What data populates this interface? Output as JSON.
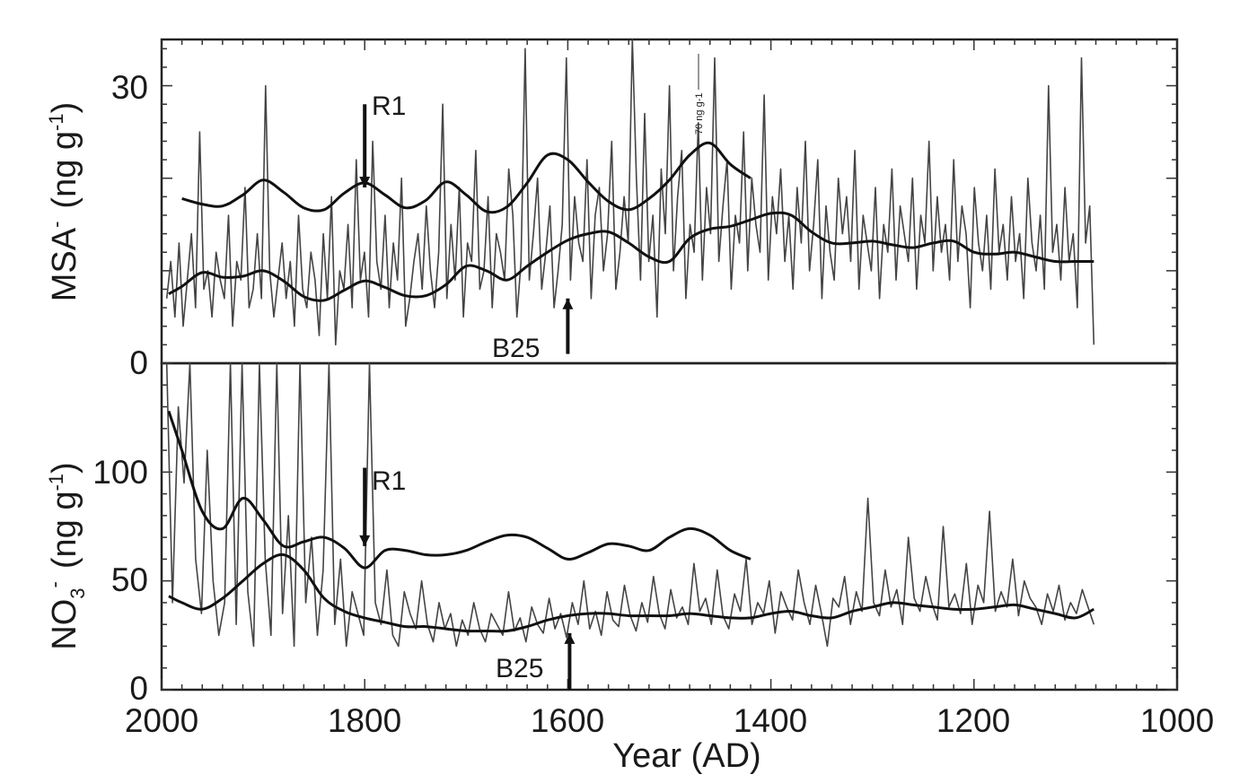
{
  "chart_data": [
    {
      "type": "line",
      "panel": "top",
      "ylabel": "MSA",
      "ylabel_sup": "-",
      "ylabel_unit": "(ng g",
      "ylabel_unit_sup": "-1",
      "ylabel_close": ")",
      "xlim": [
        2000,
        1000
      ],
      "ylim": [
        0,
        35
      ],
      "yticks": [
        0,
        30
      ],
      "ytick_labels": [
        "0",
        "30"
      ],
      "x_reversed": true,
      "grid": false,
      "annotations": [
        {
          "label": "R1",
          "x": 1800,
          "arrow": "down",
          "from_y": 28,
          "to_y": 19
        },
        {
          "label": "B25",
          "x": 1600,
          "arrow": "up",
          "from_y": 1,
          "to_y": 7
        },
        {
          "label": "70 ng g-1",
          "x": 1480,
          "y": 33,
          "note": "off-scale spike"
        }
      ],
      "series": [
        {
          "role": "raw",
          "x_range": [
            1995,
            1082
          ],
          "values": [
            7,
            11,
            5,
            13,
            4,
            9,
            14,
            6,
            25,
            8,
            10,
            5,
            12,
            9,
            7,
            16,
            4,
            11,
            9,
            19,
            6,
            8,
            14,
            7,
            30,
            10,
            5,
            9,
            13,
            7,
            11,
            4,
            16,
            8,
            6,
            12,
            9,
            3,
            14,
            7,
            18,
            2,
            10,
            8,
            15,
            6,
            22,
            9,
            12,
            5,
            24,
            11,
            8,
            16,
            6,
            13,
            9,
            20,
            4,
            7,
            11,
            14,
            8,
            17,
            10,
            6,
            12,
            28,
            7,
            15,
            9,
            19,
            5,
            13,
            11,
            23,
            8,
            10,
            18,
            6,
            14,
            12,
            9,
            21,
            16,
            5,
            11,
            34,
            9,
            14,
            20,
            8,
            12,
            17,
            6,
            10,
            15,
            33,
            9,
            18,
            13,
            11,
            22,
            7,
            16,
            19,
            10,
            14,
            24,
            8,
            12,
            18,
            13,
            35,
            20,
            9,
            27,
            11,
            16,
            5,
            21,
            14,
            30,
            10,
            18,
            23,
            7,
            15,
            12,
            26,
            9,
            19,
            14,
            33,
            11,
            17,
            22,
            8,
            16,
            13,
            25,
            10,
            20,
            15,
            12,
            29,
            9,
            18,
            14,
            21,
            11,
            16,
            8,
            19,
            13,
            24,
            10,
            15,
            22,
            7,
            17,
            12,
            9,
            20,
            14,
            18,
            11,
            23,
            8,
            16,
            13,
            10,
            19,
            7,
            15,
            12,
            21,
            9,
            17,
            14,
            11,
            20,
            8,
            16,
            13,
            24,
            10,
            18,
            12,
            15,
            9,
            22,
            11,
            17,
            14,
            6,
            19,
            13,
            10,
            16,
            8,
            21,
            12,
            15,
            9,
            18,
            11,
            14,
            7,
            20,
            13,
            10,
            16,
            8,
            30,
            12,
            15,
            9,
            19,
            11,
            14,
            6,
            33,
            13,
            17,
            2
          ]
        },
        {
          "role": "smooth-lower",
          "x": [
            1993,
            1980,
            1960,
            1940,
            1920,
            1900,
            1880,
            1860,
            1840,
            1820,
            1800,
            1780,
            1760,
            1740,
            1720,
            1700,
            1680,
            1660,
            1640,
            1620,
            1600,
            1580,
            1560,
            1540,
            1520,
            1500,
            1480,
            1460,
            1440,
            1420,
            1400,
            1380,
            1360,
            1340,
            1320,
            1300,
            1280,
            1260,
            1240,
            1220,
            1200,
            1180,
            1160,
            1140,
            1120,
            1100,
            1082
          ],
          "values": [
            7.5,
            8.3,
            9.8,
            9.3,
            9.4,
            10.0,
            8.9,
            7.2,
            6.8,
            7.9,
            8.9,
            8.2,
            7.3,
            7.3,
            8.5,
            10.5,
            10.0,
            9.0,
            10.5,
            12.0,
            13.3,
            14.0,
            14.2,
            13.0,
            11.5,
            11.0,
            13.5,
            14.5,
            14.8,
            15.5,
            16.2,
            16.0,
            14.2,
            13.0,
            13.0,
            13.2,
            12.8,
            12.5,
            13.0,
            13.2,
            12.0,
            11.8,
            12.0,
            11.5,
            11.0,
            11.0,
            11.0
          ]
        },
        {
          "role": "smooth-upper",
          "x": [
            1980,
            1960,
            1940,
            1920,
            1900,
            1880,
            1860,
            1840,
            1820,
            1800,
            1780,
            1760,
            1740,
            1720,
            1700,
            1680,
            1660,
            1640,
            1620,
            1600,
            1580,
            1560,
            1540,
            1520,
            1500,
            1480,
            1460,
            1440,
            1420
          ],
          "values": [
            17.8,
            17.2,
            17.0,
            18.2,
            19.8,
            18.5,
            16.8,
            16.6,
            18.4,
            19.5,
            18.2,
            16.8,
            17.6,
            19.6,
            18.2,
            16.4,
            16.9,
            19.5,
            22.5,
            22.0,
            19.6,
            17.5,
            16.6,
            17.8,
            19.8,
            22.5,
            23.8,
            21.5,
            20.0
          ]
        }
      ]
    },
    {
      "type": "line",
      "panel": "bottom",
      "ylabel": "NO",
      "ylabel_sub": "3",
      "ylabel_sup": "-",
      "ylabel_unit": "(ng g",
      "ylabel_unit_sup": "-1",
      "ylabel_close": ")",
      "xlabel": "Year  (AD)",
      "xticks": [
        2000,
        1800,
        1600,
        1400,
        1200,
        1000
      ],
      "xtick_labels": [
        "2000",
        "1800",
        "1600",
        "1400",
        "1200",
        "1000"
      ],
      "xlim": [
        2000,
        1000
      ],
      "ylim": [
        0,
        150
      ],
      "yticks": [
        0,
        50,
        100
      ],
      "ytick_labels": [
        "0",
        "50",
        "100"
      ],
      "x_reversed": true,
      "grid": false,
      "annotations": [
        {
          "label": "R1",
          "x": 1800,
          "arrow": "down",
          "from_y": 102,
          "to_y": 66
        },
        {
          "label": "B25",
          "x": 1600,
          "arrow": "up",
          "from_y": 0,
          "to_y": 26
        }
      ],
      "series": [
        {
          "role": "raw",
          "x_range": [
            1995,
            1082
          ],
          "values": [
            150,
            40,
            130,
            95,
            150,
            60,
            35,
            110,
            50,
            25,
            40,
            150,
            30,
            150,
            45,
            20,
            150,
            60,
            25,
            150,
            35,
            80,
            20,
            150,
            40,
            70,
            25,
            55,
            150,
            30,
            60,
            20,
            45,
            35,
            25,
            150,
            40,
            30,
            55,
            25,
            20,
            45,
            35,
            28,
            50,
            30,
            22,
            40,
            28,
            35,
            20,
            32,
            25,
            40,
            28,
            22,
            35,
            30,
            25,
            45,
            27,
            33,
            22,
            38,
            30,
            26,
            42,
            28,
            35,
            24,
            40,
            30,
            50,
            28,
            36,
            25,
            45,
            32,
            29,
            48,
            34,
            27,
            40,
            31,
            52,
            35,
            28,
            46,
            33,
            38,
            30,
            58,
            36,
            42,
            30,
            55,
            34,
            28,
            44,
            36,
            60,
            30,
            40,
            35,
            50,
            26,
            45,
            38,
            32,
            55,
            40,
            30,
            48,
            35,
            20,
            42,
            38,
            52,
            30,
            45,
            36,
            88,
            40,
            34,
            55,
            38,
            46,
            30,
            70,
            42,
            36,
            52,
            40,
            32,
            75,
            38,
            44,
            35,
            58,
            30,
            48,
            40,
            82,
            36,
            45,
            38,
            60,
            34,
            50,
            42,
            38,
            30,
            44,
            36,
            48,
            32,
            40,
            35,
            46,
            38,
            30
          ]
        },
        {
          "role": "smooth-lower",
          "x": [
            1993,
            1980,
            1960,
            1940,
            1920,
            1900,
            1880,
            1860,
            1840,
            1820,
            1800,
            1780,
            1760,
            1740,
            1720,
            1700,
            1680,
            1660,
            1640,
            1620,
            1600,
            1580,
            1560,
            1540,
            1520,
            1500,
            1480,
            1460,
            1440,
            1420,
            1400,
            1380,
            1360,
            1340,
            1320,
            1300,
            1280,
            1260,
            1240,
            1220,
            1200,
            1180,
            1160,
            1140,
            1120,
            1100,
            1082
          ],
          "values": [
            43,
            40,
            37,
            42,
            50,
            58,
            62,
            55,
            42,
            36,
            33,
            31,
            29,
            29,
            28,
            27,
            27,
            27,
            29,
            32,
            34,
            35,
            35,
            34,
            34,
            34,
            35,
            34,
            33,
            33,
            35,
            36,
            34,
            33,
            36,
            38,
            40,
            39,
            38,
            37,
            37,
            38,
            39,
            37,
            35,
            33,
            37
          ]
        },
        {
          "role": "smooth-upper",
          "x": [
            1993,
            1980,
            1960,
            1940,
            1920,
            1900,
            1880,
            1860,
            1840,
            1820,
            1800,
            1780,
            1760,
            1740,
            1720,
            1700,
            1680,
            1660,
            1640,
            1620,
            1600,
            1580,
            1560,
            1540,
            1520,
            1500,
            1480,
            1460,
            1440,
            1420
          ],
          "values": [
            128,
            110,
            82,
            74,
            88,
            78,
            66,
            68,
            70,
            65,
            56,
            64,
            64,
            62,
            62,
            64,
            68,
            71,
            70,
            65,
            60,
            63,
            67,
            66,
            64,
            70,
            74,
            71,
            64,
            60
          ]
        }
      ]
    }
  ]
}
